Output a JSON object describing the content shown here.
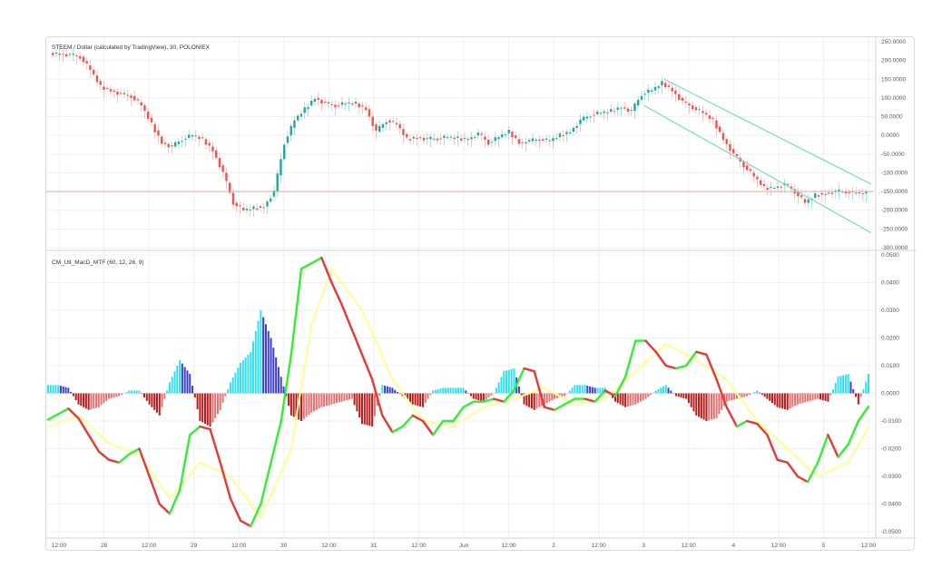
{
  "chart_data": [
    {
      "type": "candlestick",
      "title": "STEEM / Dollar (calculated by TradingView), 30, POLONIEX",
      "y_ticks": [
        "250.0000",
        "200.0000",
        "150.0000",
        "100.0000",
        "50.0000",
        "0.0000",
        "-50.0000",
        "-100.0000",
        "-150.0000",
        "-200.0000",
        "-250.0000",
        "-300.0000"
      ],
      "ylim": [
        -300,
        250
      ],
      "close_series": [
        [
          0,
          220
        ],
        [
          2,
          215
        ],
        [
          3,
          210
        ],
        [
          4,
          175
        ],
        [
          5,
          130
        ],
        [
          6,
          120
        ],
        [
          7,
          110
        ],
        [
          8,
          105
        ],
        [
          9,
          80
        ],
        [
          10,
          30
        ],
        [
          11,
          -20
        ],
        [
          12,
          -30
        ],
        [
          13,
          -10
        ],
        [
          14,
          0
        ],
        [
          15,
          -10
        ],
        [
          16,
          -40
        ],
        [
          17,
          -100
        ],
        [
          18,
          -180
        ],
        [
          19,
          -200
        ],
        [
          20,
          -195
        ],
        [
          21,
          -190
        ],
        [
          22,
          -150
        ],
        [
          23,
          -20
        ],
        [
          24,
          40
        ],
        [
          25,
          70
        ],
        [
          26,
          100
        ],
        [
          27,
          85
        ],
        [
          28,
          80
        ],
        [
          29,
          85
        ],
        [
          30,
          85
        ],
        [
          31,
          70
        ],
        [
          32,
          10
        ],
        [
          33,
          40
        ],
        [
          34,
          30
        ],
        [
          35,
          -10
        ],
        [
          36,
          -5
        ],
        [
          37,
          -10
        ],
        [
          38,
          -8
        ],
        [
          39,
          -5
        ],
        [
          40,
          -8
        ],
        [
          41,
          -10
        ],
        [
          42,
          5
        ],
        [
          43,
          -20
        ],
        [
          44,
          -5
        ],
        [
          45,
          10
        ],
        [
          46,
          -20
        ],
        [
          47,
          -15
        ],
        [
          48,
          -10
        ],
        [
          49,
          -15
        ],
        [
          50,
          0
        ],
        [
          51,
          10
        ],
        [
          52,
          40
        ],
        [
          53,
          55
        ],
        [
          54,
          60
        ],
        [
          55,
          65
        ],
        [
          56,
          75
        ],
        [
          57,
          65
        ],
        [
          58,
          110
        ],
        [
          59,
          120
        ],
        [
          60,
          140
        ],
        [
          61,
          120
        ],
        [
          62,
          90
        ],
        [
          63,
          75
        ],
        [
          64,
          60
        ],
        [
          65,
          40
        ],
        [
          66,
          -10
        ],
        [
          67,
          -50
        ],
        [
          68,
          -80
        ],
        [
          69,
          -110
        ],
        [
          70,
          -140
        ],
        [
          71,
          -140
        ],
        [
          72,
          -130
        ],
        [
          73,
          -150
        ],
        [
          74,
          -180
        ],
        [
          75,
          -160
        ],
        [
          76,
          -155
        ],
        [
          77,
          -150
        ],
        [
          78,
          -150
        ],
        [
          79,
          -155
        ]
      ],
      "horizontal_line": -150,
      "channel": {
        "upper": [
          [
            60,
            150
          ],
          [
            79,
            -130
          ]
        ],
        "lower": [
          [
            58,
            80
          ],
          [
            79,
            -260
          ]
        ]
      }
    },
    {
      "type": "line+histogram",
      "title": "CM_Ult_MacD_MTF (60, 12, 26, 9)",
      "y_ticks": [
        "0.0500",
        "0.0400",
        "0.0300",
        "0.0200",
        "0.0100",
        "0.0000",
        "-0.0100",
        "-0.0200",
        "-0.0300",
        "-0.0400",
        "-0.0500"
      ],
      "ylim": [
        -0.05,
        0.05
      ],
      "macd": [
        [
          0,
          -0.0095
        ],
        [
          1,
          -0.0075
        ],
        [
          2,
          -0.0055
        ],
        [
          3,
          -0.009
        ],
        [
          4,
          -0.015
        ],
        [
          5,
          -0.021
        ],
        [
          6,
          -0.024
        ],
        [
          7,
          -0.025
        ],
        [
          8,
          -0.022
        ],
        [
          9,
          -0.02
        ],
        [
          10,
          -0.03
        ],
        [
          11,
          -0.04
        ],
        [
          12,
          -0.0435
        ],
        [
          13,
          -0.035
        ],
        [
          14,
          -0.015
        ],
        [
          15,
          -0.012
        ],
        [
          16,
          -0.013
        ],
        [
          17,
          -0.025
        ],
        [
          18,
          -0.038
        ],
        [
          19,
          -0.046
        ],
        [
          20,
          -0.048
        ],
        [
          21,
          -0.04
        ],
        [
          22,
          -0.025
        ],
        [
          23,
          -0.01
        ],
        [
          24,
          0.014
        ],
        [
          25,
          0.045
        ],
        [
          26,
          0.047
        ],
        [
          27,
          0.049
        ],
        [
          28,
          0.04
        ],
        [
          29,
          0.032
        ],
        [
          30,
          0.023
        ],
        [
          31,
          0.014
        ],
        [
          32,
          0.005
        ],
        [
          33,
          -0.008
        ],
        [
          34,
          -0.014
        ],
        [
          35,
          -0.012
        ],
        [
          36,
          -0.008
        ],
        [
          37,
          -0.01
        ],
        [
          38,
          -0.015
        ],
        [
          39,
          -0.01
        ],
        [
          40,
          -0.01
        ],
        [
          41,
          -0.005
        ],
        [
          42,
          -0.003
        ],
        [
          43,
          -0.003
        ],
        [
          44,
          -0.002
        ],
        [
          45,
          -0.003
        ],
        [
          46,
          0.001
        ],
        [
          47,
          0.009
        ],
        [
          48,
          0.008
        ],
        [
          49,
          -0.005
        ],
        [
          50,
          -0.006
        ],
        [
          51,
          -0.004
        ],
        [
          52,
          -0.002
        ],
        [
          53,
          -0.002
        ],
        [
          54,
          -0.003
        ],
        [
          55,
          0.001
        ],
        [
          56,
          -0.001
        ],
        [
          57,
          0.006
        ],
        [
          58,
          0.019
        ],
        [
          59,
          0.019
        ],
        [
          60,
          0.015
        ],
        [
          61,
          0.01
        ],
        [
          62,
          0.009
        ],
        [
          63,
          0.01
        ],
        [
          64,
          0.015
        ],
        [
          65,
          0.014
        ],
        [
          66,
          0.005
        ],
        [
          67,
          -0.005
        ],
        [
          68,
          -0.012
        ],
        [
          69,
          -0.01
        ],
        [
          70,
          -0.011
        ],
        [
          71,
          -0.015
        ],
        [
          72,
          -0.024
        ],
        [
          73,
          -0.025
        ],
        [
          74,
          -0.03
        ],
        [
          75,
          -0.032
        ],
        [
          76,
          -0.025
        ],
        [
          77,
          -0.015
        ],
        [
          78,
          -0.023
        ],
        [
          79,
          -0.0185
        ],
        [
          80,
          -0.01
        ],
        [
          81,
          -0.0048
        ]
      ],
      "signal": [
        [
          0,
          -0.012
        ],
        [
          3,
          -0.008
        ],
        [
          6,
          -0.018
        ],
        [
          9,
          -0.022
        ],
        [
          12,
          -0.038
        ],
        [
          15,
          -0.025
        ],
        [
          18,
          -0.03
        ],
        [
          21,
          -0.045
        ],
        [
          24,
          -0.02
        ],
        [
          26,
          0.025
        ],
        [
          28,
          0.045
        ],
        [
          31,
          0.03
        ],
        [
          34,
          0.005
        ],
        [
          37,
          -0.01
        ],
        [
          40,
          -0.012
        ],
        [
          43,
          -0.005
        ],
        [
          46,
          -0.002
        ],
        [
          49,
          0.002
        ],
        [
          52,
          -0.004
        ],
        [
          55,
          -0.002
        ],
        [
          58,
          0.008
        ],
        [
          61,
          0.018
        ],
        [
          64,
          0.012
        ],
        [
          67,
          0.005
        ],
        [
          70,
          -0.01
        ],
        [
          73,
          -0.02
        ],
        [
          76,
          -0.03
        ],
        [
          79,
          -0.025
        ],
        [
          81,
          -0.012
        ]
      ],
      "histogram": [
        [
          0,
          0.003
        ],
        [
          1,
          0.003
        ],
        [
          2,
          0.002
        ],
        [
          3,
          -0.004
        ],
        [
          4,
          -0.006
        ],
        [
          5,
          -0.005
        ],
        [
          6,
          -0.002
        ],
        [
          7,
          -0.001
        ],
        [
          8,
          0.001
        ],
        [
          9,
          0.001
        ],
        [
          10,
          -0.004
        ],
        [
          11,
          -0.008
        ],
        [
          12,
          0.004
        ],
        [
          13,
          0.012
        ],
        [
          14,
          0.007
        ],
        [
          15,
          -0.01
        ],
        [
          16,
          -0.012
        ],
        [
          17,
          -0.006
        ],
        [
          18,
          0.004
        ],
        [
          19,
          0.011
        ],
        [
          20,
          0.015
        ],
        [
          21,
          0.03
        ],
        [
          22,
          0.02
        ],
        [
          23,
          0.006
        ],
        [
          24,
          -0.008
        ],
        [
          25,
          -0.01
        ],
        [
          26,
          -0.007
        ],
        [
          27,
          -0.005
        ],
        [
          28,
          -0.004
        ],
        [
          29,
          -0.003
        ],
        [
          30,
          -0.002
        ],
        [
          31,
          -0.011
        ],
        [
          32,
          -0.012
        ],
        [
          33,
          0.003
        ],
        [
          34,
          0.002
        ],
        [
          35,
          -0.001
        ],
        [
          36,
          -0.004
        ],
        [
          37,
          -0.005
        ],
        [
          38,
          0.001
        ],
        [
          39,
          0.002
        ],
        [
          40,
          0.002
        ],
        [
          41,
          0.002
        ],
        [
          42,
          -0.002
        ],
        [
          43,
          -0.003
        ],
        [
          44,
          0.0
        ],
        [
          45,
          0.008
        ],
        [
          46,
          0.009
        ],
        [
          47,
          -0.004
        ],
        [
          48,
          -0.006
        ],
        [
          49,
          -0.004
        ],
        [
          50,
          -0.002
        ],
        [
          51,
          -0.001
        ],
        [
          52,
          0.003
        ],
        [
          53,
          0.003
        ],
        [
          54,
          0.002
        ],
        [
          55,
          0.002
        ],
        [
          56,
          -0.003
        ],
        [
          57,
          -0.005
        ],
        [
          58,
          -0.004
        ],
        [
          59,
          -0.002
        ],
        [
          60,
          0.001
        ],
        [
          61,
          0.003
        ],
        [
          62,
          -0.001
        ],
        [
          63,
          -0.002
        ],
        [
          64,
          -0.008
        ],
        [
          65,
          -0.01
        ],
        [
          66,
          -0.009
        ],
        [
          67,
          -0.003
        ],
        [
          68,
          -0.002
        ],
        [
          69,
          -0.001
        ],
        [
          70,
          0.001
        ],
        [
          71,
          -0.002
        ],
        [
          72,
          -0.005
        ],
        [
          73,
          -0.006
        ],
        [
          74,
          -0.004
        ],
        [
          75,
          -0.003
        ],
        [
          76,
          -0.002
        ],
        [
          77,
          -0.003
        ],
        [
          78,
          0.006
        ],
        [
          79,
          0.007
        ],
        [
          80,
          -0.004
        ],
        [
          81,
          0.007
        ]
      ]
    }
  ],
  "x_axis": {
    "labels": [
      "12:00",
      "28",
      "12:00",
      "29",
      "12:00",
      "30",
      "12:00",
      "31",
      "12:00",
      "Jun",
      "12:00",
      "2",
      "12:00",
      "3",
      "12:00",
      "4",
      "12:00",
      "5",
      "12:00"
    ]
  },
  "colors": {
    "up": "#26a69a",
    "down": "#ef5350",
    "hline": "#f4a6a6",
    "channel": "#7fd6c8",
    "macd_up": "#33ee33",
    "macd_down": "#e53935",
    "signal": "#ffff99",
    "hist_pos_strong": "#3f3fcf",
    "hist_pos_weak": "#33e0f0",
    "hist_neg_strong": "#b71c1c",
    "hist_neg_weak": "#e57373"
  }
}
